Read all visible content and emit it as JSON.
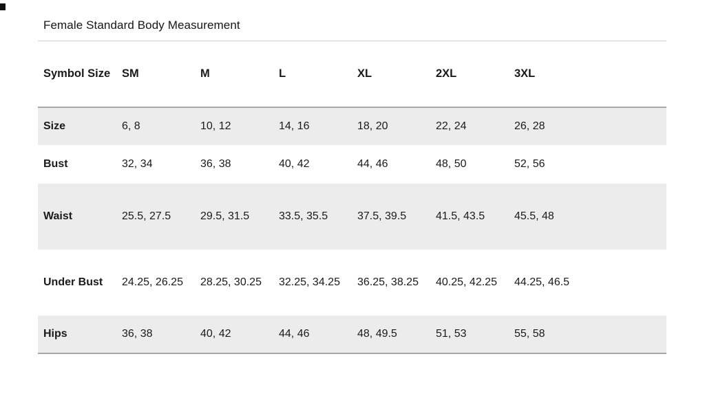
{
  "title": "Female Standard Body Measurement",
  "table": {
    "columns": [
      "Symbol Size",
      "SM",
      "M",
      "L",
      "XL",
      "2XL",
      "3XL"
    ],
    "rows": [
      {
        "label": "Size",
        "values": [
          "6, 8",
          "10, 12",
          "14, 16",
          "18, 20",
          "22, 24",
          "26, 28"
        ]
      },
      {
        "label": "Bust",
        "values": [
          "32, 34",
          "36, 38",
          "40, 42",
          "44, 46",
          "48, 50",
          "52, 56"
        ]
      },
      {
        "label": "Waist",
        "values": [
          "25.5, 27.5",
          "29.5, 31.5",
          "33.5, 35.5",
          "37.5, 39.5",
          "41.5, 43.5",
          "45.5, 48"
        ]
      },
      {
        "label": "Under Bust",
        "values": [
          "24.25, 26.25",
          "28.25, 30.25",
          "32.25, 34.25",
          "36.25, 38.25",
          "40.25, 42.25",
          "44.25, 46.5"
        ]
      },
      {
        "label": "Hips",
        "values": [
          "36, 38",
          "40, 42",
          "44, 46",
          "48, 49.5",
          "51, 53",
          "55, 58"
        ]
      }
    ]
  },
  "colors": {
    "row_band": "#ececec",
    "rule_dark": "#a9a9a9",
    "rule_light": "#cdcdcd",
    "text": "#1a1a1a"
  }
}
